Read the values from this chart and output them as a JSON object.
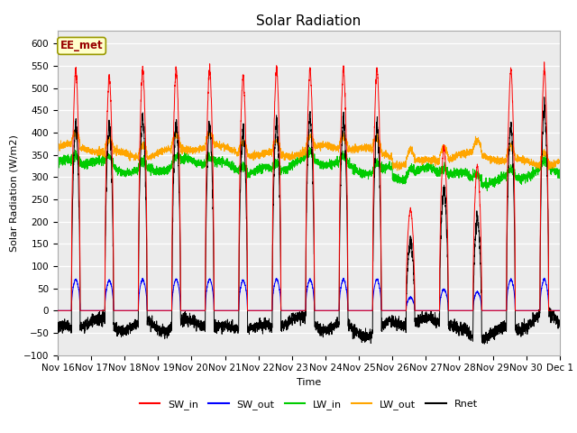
{
  "title": "Solar Radiation",
  "ylabel": "Solar Radiation (W/m2)",
  "xlabel": "Time",
  "ylim": [
    -100,
    630
  ],
  "yticks": [
    -100,
    -50,
    0,
    50,
    100,
    150,
    200,
    250,
    300,
    350,
    400,
    450,
    500,
    550,
    600
  ],
  "n_days": 15,
  "pts_per_day": 288,
  "colors": {
    "SW_in": "#ff0000",
    "SW_out": "#0000ff",
    "LW_in": "#00cc00",
    "LW_out": "#ffa500",
    "Rnet": "#000000"
  },
  "annotation_text": "EE_met",
  "annotation_color": "#990000",
  "annotation_bg": "#ffffcc",
  "annotation_border": "#999900",
  "bg_color": "#ebebeb",
  "grid_color": "#ffffff",
  "title_fontsize": 11,
  "label_fontsize": 8,
  "tick_fontsize": 7.5,
  "legend_fontsize": 8
}
